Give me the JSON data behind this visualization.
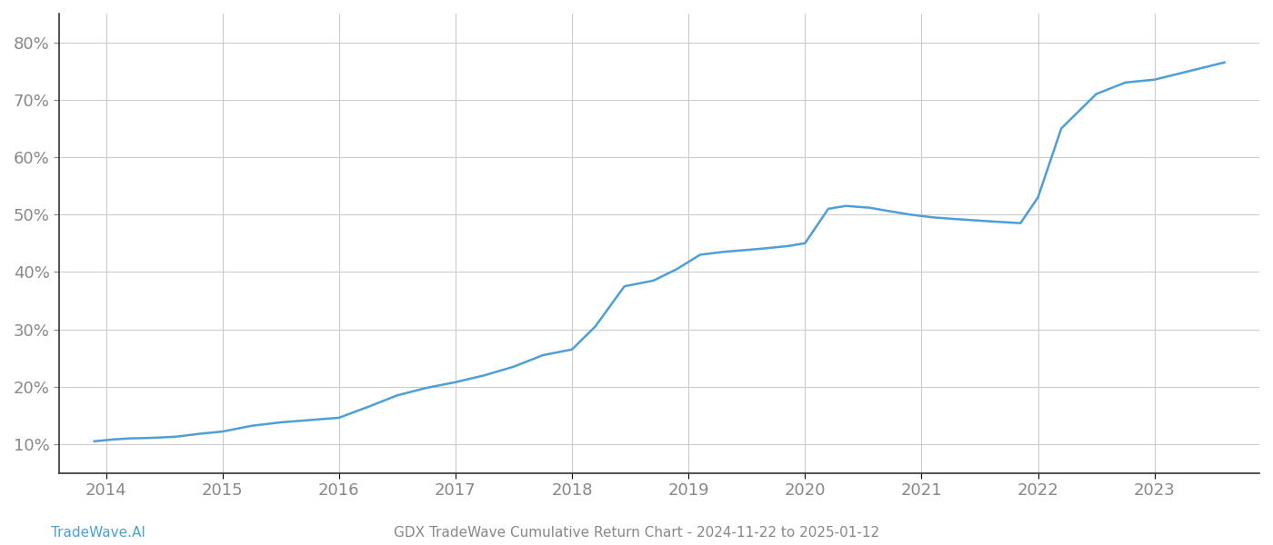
{
  "title": "GDX TradeWave Cumulative Return Chart - 2024-11-22 to 2025-01-12",
  "watermark": "TradeWave.AI",
  "line_color": "#4d9fd6",
  "background_color": "#ffffff",
  "grid_color": "#cccccc",
  "x_years": [
    2014,
    2015,
    2016,
    2017,
    2018,
    2019,
    2020,
    2021,
    2022,
    2023
  ],
  "data_x": [
    2013.9,
    2014.05,
    2014.2,
    2014.4,
    2014.6,
    2014.8,
    2015.0,
    2015.25,
    2015.5,
    2015.75,
    2016.0,
    2016.25,
    2016.5,
    2016.75,
    2017.0,
    2017.25,
    2017.5,
    2017.75,
    2018.0,
    2018.2,
    2018.45,
    2018.7,
    2018.9,
    2019.1,
    2019.3,
    2019.6,
    2019.85,
    2020.0,
    2020.2,
    2020.35,
    2020.55,
    2020.75,
    2020.9,
    2021.1,
    2021.3,
    2021.6,
    2021.85,
    2022.0,
    2022.2,
    2022.5,
    2022.75,
    2023.0,
    2023.3,
    2023.6
  ],
  "data_y": [
    10.5,
    10.8,
    11.0,
    11.1,
    11.3,
    11.8,
    12.2,
    13.2,
    13.8,
    14.2,
    14.6,
    16.5,
    18.5,
    19.8,
    20.8,
    22.0,
    23.5,
    25.5,
    26.5,
    30.5,
    37.5,
    38.5,
    40.5,
    43.0,
    43.5,
    44.0,
    44.5,
    45.0,
    51.0,
    51.5,
    51.2,
    50.5,
    50.0,
    49.5,
    49.2,
    48.8,
    48.5,
    53.0,
    65.0,
    71.0,
    73.0,
    73.5,
    75.0,
    76.5
  ],
  "ylim": [
    5,
    85
  ],
  "xlim": [
    2013.6,
    2023.9
  ],
  "yticks": [
    10,
    20,
    30,
    40,
    50,
    60,
    70,
    80
  ],
  "title_fontsize": 11,
  "watermark_fontsize": 11,
  "tick_fontsize": 13,
  "line_width": 1.8,
  "spine_color": "#333333"
}
